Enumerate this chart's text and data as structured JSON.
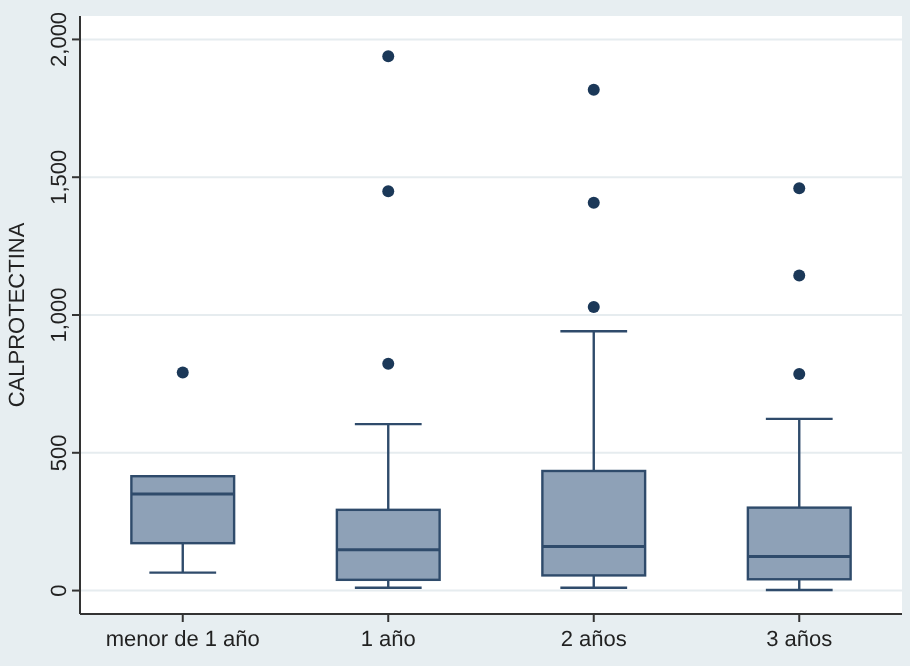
{
  "chart_data": {
    "type": "box",
    "ylabel": "CALPROTECTINA",
    "categories": [
      "menor de 1 año",
      "1 año",
      "2 años",
      "3 años"
    ],
    "color": "#8ea1b7",
    "ylim": [
      -85,
      2085
    ],
    "yticks": [
      {
        "value": 0,
        "label": "0"
      },
      {
        "value": 500,
        "label": "500"
      },
      {
        "value": 1000,
        "label": "1,000"
      },
      {
        "value": 1500,
        "label": "1,500"
      },
      {
        "value": 2000,
        "label": "2,000"
      }
    ],
    "grid": "y",
    "boxes": [
      {
        "low": 65,
        "q1": 172,
        "median": 350,
        "q3": 415,
        "high": 415,
        "outliers": [
          791
        ]
      },
      {
        "low": 10,
        "q1": 39,
        "median": 148,
        "q3": 293,
        "high": 604,
        "outliers": [
          823,
          1449,
          1939
        ]
      },
      {
        "low": 10,
        "q1": 55,
        "median": 160,
        "q3": 434,
        "high": 941,
        "outliers": [
          1029,
          1407,
          1817
        ]
      },
      {
        "low": 2,
        "q1": 41,
        "median": 124,
        "q3": 301,
        "high": 623,
        "outliers": [
          786,
          1143,
          1460
        ]
      }
    ]
  }
}
